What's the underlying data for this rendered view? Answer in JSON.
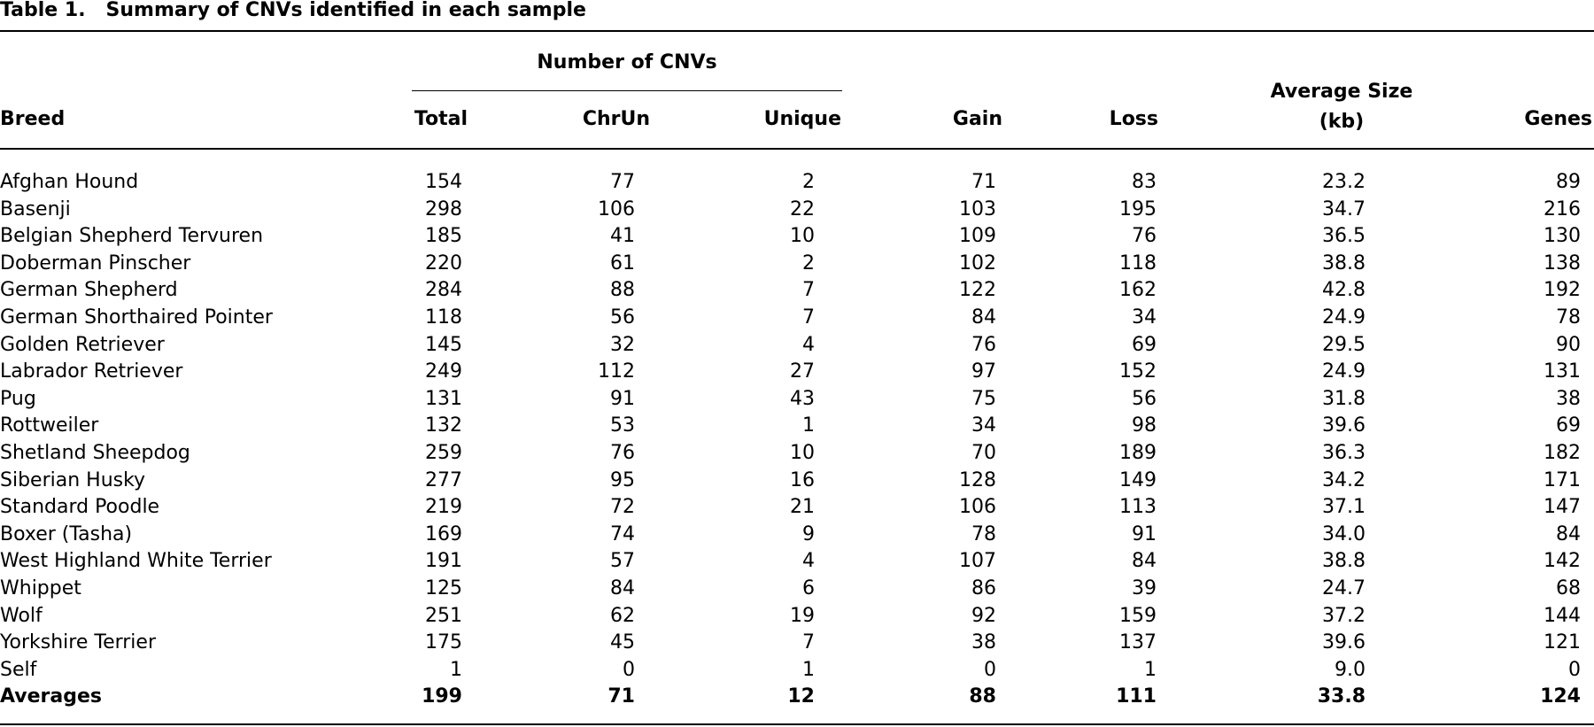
{
  "header": {
    "label": "Table 1.",
    "title": "Summary of CNVs identified in each sample"
  },
  "table": {
    "group_header": "Number of CNVs",
    "columns": [
      "Breed",
      "Total",
      "ChrUn",
      "Unique",
      "Gain",
      "Loss",
      "Average Size (kb)",
      "Genes"
    ],
    "rows": [
      [
        "Afghan Hound",
        "154",
        "77",
        "2",
        "71",
        "83",
        "23.2",
        "89"
      ],
      [
        "Basenji",
        "298",
        "106",
        "22",
        "103",
        "195",
        "34.7",
        "216"
      ],
      [
        "Belgian Shepherd Tervuren",
        "185",
        "41",
        "10",
        "109",
        "76",
        "36.5",
        "130"
      ],
      [
        "Doberman Pinscher",
        "220",
        "61",
        "2",
        "102",
        "118",
        "38.8",
        "138"
      ],
      [
        "German Shepherd",
        "284",
        "88",
        "7",
        "122",
        "162",
        "42.8",
        "192"
      ],
      [
        "German Shorthaired Pointer",
        "118",
        "56",
        "7",
        "84",
        "34",
        "24.9",
        "78"
      ],
      [
        "Golden Retriever",
        "145",
        "32",
        "4",
        "76",
        "69",
        "29.5",
        "90"
      ],
      [
        "Labrador Retriever",
        "249",
        "112",
        "27",
        "97",
        "152",
        "24.9",
        "131"
      ],
      [
        "Pug",
        "131",
        "91",
        "43",
        "75",
        "56",
        "31.8",
        "38"
      ],
      [
        "Rottweiler",
        "132",
        "53",
        "1",
        "34",
        "98",
        "39.6",
        "69"
      ],
      [
        "Shetland Sheepdog",
        "259",
        "76",
        "10",
        "70",
        "189",
        "36.3",
        "182"
      ],
      [
        "Siberian Husky",
        "277",
        "95",
        "16",
        "128",
        "149",
        "34.2",
        "171"
      ],
      [
        "Standard Poodle",
        "219",
        "72",
        "21",
        "106",
        "113",
        "37.1",
        "147"
      ],
      [
        "Boxer (Tasha)",
        "169",
        "74",
        "9",
        "78",
        "91",
        "34.0",
        "84"
      ],
      [
        "West Highland White Terrier",
        "191",
        "57",
        "4",
        "107",
        "84",
        "38.8",
        "142"
      ],
      [
        "Whippet",
        "125",
        "84",
        "6",
        "86",
        "39",
        "24.7",
        "68"
      ],
      [
        "Wolf",
        "251",
        "62",
        "19",
        "92",
        "159",
        "37.2",
        "144"
      ],
      [
        "Yorkshire Terrier",
        "175",
        "45",
        "7",
        "38",
        "137",
        "39.6",
        "121"
      ],
      [
        "Self",
        "1",
        "0",
        "1",
        "0",
        "1",
        "9.0",
        "0"
      ]
    ],
    "footer": [
      "Averages",
      "199",
      "71",
      "12",
      "88",
      "111",
      "33.8",
      "124"
    ]
  }
}
